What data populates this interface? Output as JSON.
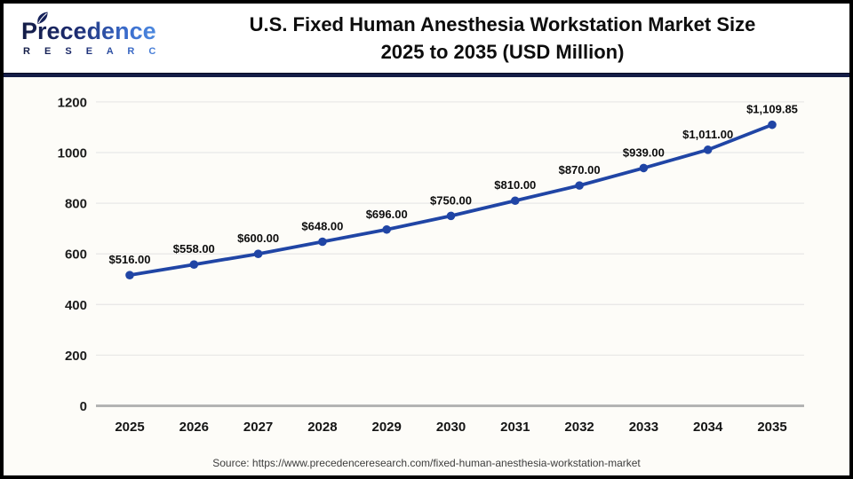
{
  "logo": {
    "brand": "Precedence",
    "sub": "R E S E A R C H"
  },
  "header": {
    "title_line1": "U.S. Fixed Human Anesthesia Workstation Market Size",
    "title_line2": "2025 to 2035 (USD Million)"
  },
  "chart_data": {
    "type": "line",
    "title": "U.S. Fixed Human Anesthesia Workstation Market Size 2025 to 2035 (USD Million)",
    "categories": [
      "2025",
      "2026",
      "2027",
      "2028",
      "2029",
      "2030",
      "2031",
      "2032",
      "2033",
      "2034",
      "2035"
    ],
    "values": [
      516,
      558,
      600,
      648,
      696,
      750,
      810,
      870,
      939,
      1011,
      1109.85
    ],
    "point_labels": [
      "$516.00",
      "$558.00",
      "$600.00",
      "$648.00",
      "$696.00",
      "$750.00",
      "$810.00",
      "$870.00",
      "$939.00",
      "$1,011.00",
      "$1,109.85"
    ],
    "xlabel": "",
    "ylabel": "",
    "ylim": [
      0,
      1200
    ],
    "yticks": [
      0,
      200,
      400,
      600,
      800,
      1000,
      1200
    ],
    "grid": true,
    "legend": "none",
    "line_color": "#2045a5",
    "marker_color": "#2045a5",
    "grid_color": "#e9e9e7",
    "axis_color": "#b3b3b3"
  },
  "footer": {
    "source": "Source: https://www.precedenceresearch.com/fixed-human-anesthesia-workstation-market"
  },
  "colors": {
    "divider_navy": "#141d47",
    "frame_border": "#000000",
    "brand_dark": "#1c2b70",
    "brand_light": "#4d8ae0"
  }
}
